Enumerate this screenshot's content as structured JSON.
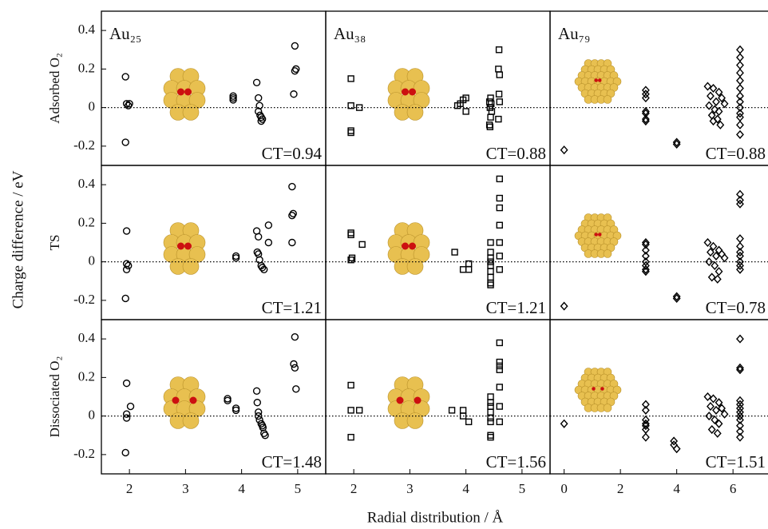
{
  "ylabel": "Charge difference / eV",
  "xlabel": "Radial distribution / Å",
  "chart_data": [
    {
      "type": "scatter",
      "title": "Au₂₅",
      "ylabel": "Adsorbed O₂",
      "annotation": "CT=0.94",
      "marker": "circle",
      "color": "#000000",
      "x": [
        1.93,
        1.95,
        1.98,
        2.0,
        1.93,
        3.85,
        3.85,
        3.85,
        4.27,
        4.3,
        4.32,
        4.3,
        4.33,
        4.35,
        4.37,
        4.35,
        4.95,
        4.97,
        4.95,
        4.93
      ],
      "values": [
        0.16,
        0.02,
        0.01,
        0.02,
        -0.18,
        0.06,
        0.05,
        0.04,
        0.13,
        0.05,
        0.01,
        -0.02,
        -0.04,
        -0.05,
        -0.06,
        -0.07,
        0.32,
        0.2,
        0.19,
        0.07
      ],
      "xlim": [
        1.5,
        5.5
      ],
      "ylim": [
        -0.3,
        0.5
      ],
      "yticks": [
        -0.2,
        0,
        0.2,
        0.4
      ],
      "hline": 0
    },
    {
      "type": "scatter",
      "title": "Au₃₈",
      "annotation": "CT=0.88",
      "marker": "square",
      "color": "#000000",
      "x": [
        1.95,
        1.95,
        2.1,
        1.95,
        1.95,
        3.85,
        3.95,
        4.0,
        4.0,
        3.9,
        4.44,
        4.42,
        4.45,
        4.43,
        4.46,
        4.44,
        4.42,
        4.43,
        4.59,
        4.58,
        4.6,
        4.59,
        4.6,
        4.58
      ],
      "values": [
        0.15,
        0.01,
        0.0,
        -0.12,
        -0.13,
        0.01,
        0.04,
        0.05,
        -0.02,
        0.02,
        0.05,
        0.03,
        0.02,
        0.0,
        -0.02,
        -0.05,
        -0.09,
        -0.1,
        0.3,
        0.2,
        0.17,
        0.07,
        0.03,
        -0.06
      ],
      "xlim": [
        1.5,
        5.5
      ],
      "ylim": [
        -0.3,
        0.5
      ],
      "hline": 0
    },
    {
      "type": "scatter",
      "title": "Au₇₉",
      "annotation": "CT=0.88",
      "marker": "diamond",
      "color": "#000000",
      "x": [
        0,
        2.9,
        2.9,
        2.9,
        2.9,
        2.9,
        2.9,
        2.9,
        4.0,
        4.0,
        5.1,
        5.3,
        5.5,
        5.2,
        5.6,
        5.4,
        5.7,
        5.15,
        5.35,
        5.5,
        5.25,
        5.45,
        5.3,
        5.55,
        6.25,
        6.25,
        6.25,
        6.25,
        6.25,
        6.25,
        6.25,
        6.25,
        6.25,
        6.25,
        6.25,
        6.25,
        6.25
      ],
      "values": [
        -0.22,
        0.09,
        0.07,
        0.05,
        -0.02,
        -0.03,
        -0.06,
        -0.07,
        -0.18,
        -0.19,
        0.11,
        0.1,
        0.08,
        0.06,
        0.05,
        0.03,
        0.02,
        0.01,
        -0.01,
        -0.02,
        -0.04,
        -0.06,
        -0.07,
        -0.09,
        0.3,
        0.26,
        0.22,
        0.18,
        0.14,
        0.1,
        0.06,
        0.03,
        0,
        -0.03,
        -0.05,
        -0.09,
        -0.14
      ],
      "xlim": [
        -0.5,
        7.3
      ],
      "ylim": [
        -0.3,
        0.5
      ],
      "hline": 0
    },
    {
      "type": "scatter",
      "ylabel": "TS",
      "annotation": "CT=1.21",
      "marker": "circle",
      "color": "#000000",
      "x": [
        1.95,
        1.95,
        1.98,
        1.95,
        1.93,
        3.9,
        3.9,
        4.27,
        4.3,
        4.28,
        4.3,
        4.32,
        4.35,
        4.37,
        4.4,
        4.48,
        4.48,
        4.9,
        4.92,
        4.9,
        4.9
      ],
      "values": [
        0.16,
        -0.01,
        -0.02,
        -0.04,
        -0.19,
        0.03,
        0.02,
        0.16,
        0.13,
        0.05,
        0.04,
        0.01,
        -0.02,
        -0.03,
        -0.04,
        0.19,
        0.1,
        0.39,
        0.25,
        0.24,
        0.1
      ],
      "xlim": [
        1.5,
        5.5
      ],
      "ylim": [
        -0.3,
        0.5
      ],
      "yticks": [
        -0.2,
        0,
        0.2,
        0.4
      ],
      "hline": 0
    },
    {
      "type": "scatter",
      "annotation": "CT=1.21",
      "marker": "square",
      "color": "#000000",
      "x": [
        1.95,
        1.95,
        1.95,
        1.97,
        2.15,
        3.8,
        3.95,
        4.05,
        4.05,
        4.44,
        4.44,
        4.44,
        4.44,
        4.44,
        4.44,
        4.44,
        4.44,
        4.44,
        4.6,
        4.6,
        4.6,
        4.6,
        4.6,
        4.6,
        4.6
      ],
      "values": [
        0.15,
        0.14,
        0.01,
        0.02,
        0.09,
        0.05,
        -0.04,
        -0.01,
        -0.04,
        0.1,
        0.05,
        0.02,
        0,
        -0.02,
        -0.05,
        -0.08,
        -0.11,
        -0.12,
        0.43,
        0.33,
        0.28,
        0.19,
        0.1,
        0.03,
        -0.04
      ],
      "xlim": [
        1.5,
        5.5
      ],
      "ylim": [
        -0.3,
        0.5
      ],
      "hline": 0
    },
    {
      "type": "scatter",
      "annotation": "CT=0.78",
      "marker": "diamond",
      "color": "#000000",
      "x": [
        0,
        2.9,
        2.9,
        2.9,
        2.9,
        2.9,
        2.9,
        2.9,
        2.9,
        4.0,
        4.0,
        5.1,
        5.3,
        5.5,
        5.2,
        5.6,
        5.4,
        5.7,
        5.15,
        5.35,
        5.5,
        5.25,
        5.45,
        6.25,
        6.25,
        6.25,
        6.25,
        6.25,
        6.25,
        6.25,
        6.25,
        6.25,
        6.25
      ],
      "values": [
        -0.23,
        0.1,
        0.09,
        0.06,
        0.03,
        0,
        -0.02,
        -0.04,
        -0.05,
        -0.18,
        -0.19,
        0.1,
        0.08,
        0.06,
        0.05,
        0.04,
        0.03,
        0.02,
        0,
        -0.02,
        -0.05,
        -0.08,
        -0.09,
        0.35,
        0.32,
        0.3,
        0.12,
        0.08,
        0.05,
        0.03,
        0,
        -0.02,
        -0.04
      ],
      "xlim": [
        -0.5,
        7.3
      ],
      "ylim": [
        -0.3,
        0.5
      ],
      "hline": 0
    },
    {
      "type": "scatter",
      "ylabel": "Dissociated O₂",
      "annotation": "CT=1.48",
      "marker": "circle",
      "color": "#000000",
      "x": [
        1.95,
        1.95,
        2.02,
        1.95,
        1.93,
        3.75,
        3.75,
        3.9,
        3.9,
        4.27,
        4.28,
        4.3,
        4.3,
        4.32,
        4.35,
        4.37,
        4.38,
        4.4,
        4.42,
        4.95,
        4.93,
        4.95,
        4.97
      ],
      "values": [
        0.17,
        0.01,
        0.05,
        -0.01,
        -0.19,
        0.09,
        0.08,
        0.04,
        0.03,
        0.13,
        0.07,
        0.02,
        0,
        -0.02,
        -0.04,
        -0.05,
        -0.06,
        -0.09,
        -0.1,
        0.41,
        0.27,
        0.25,
        0.14
      ],
      "xlim": [
        1.5,
        5.5
      ],
      "ylim": [
        -0.3,
        0.5
      ],
      "xticks": [
        2,
        3,
        4,
        5
      ],
      "yticks": [
        -0.2,
        0,
        0.2,
        0.4
      ],
      "hline": 0
    },
    {
      "type": "scatter",
      "annotation": "CT=1.56",
      "marker": "square",
      "color": "#000000",
      "x": [
        1.95,
        1.95,
        1.95,
        2.1,
        3.75,
        3.95,
        3.95,
        4.05,
        4.44,
        4.44,
        4.44,
        4.44,
        4.44,
        4.44,
        4.44,
        4.44,
        4.6,
        4.6,
        4.6,
        4.6,
        4.6,
        4.6,
        4.6
      ],
      "values": [
        0.16,
        0.03,
        -0.11,
        0.03,
        0.03,
        0.03,
        0,
        -0.03,
        0.1,
        0.07,
        0.05,
        0.02,
        -0.01,
        -0.03,
        -0.1,
        -0.11,
        0.38,
        0.28,
        0.26,
        0.24,
        0.15,
        0.05,
        -0.03
      ],
      "xlim": [
        1.5,
        5.5
      ],
      "ylim": [
        -0.3,
        0.5
      ],
      "xticks": [
        2,
        3,
        4,
        5
      ],
      "hline": 0
    },
    {
      "type": "scatter",
      "annotation": "CT=1.51",
      "marker": "diamond",
      "color": "#000000",
      "x": [
        0,
        2.9,
        2.9,
        2.9,
        2.9,
        2.9,
        2.9,
        2.9,
        3.9,
        3.9,
        4.0,
        5.1,
        5.3,
        5.5,
        5.2,
        5.6,
        5.4,
        5.7,
        5.15,
        5.35,
        5.5,
        5.25,
        5.45,
        6.25,
        6.25,
        6.25,
        6.25,
        6.25,
        6.25,
        6.25,
        6.25,
        6.25,
        6.25,
        6.25,
        6.25
      ],
      "values": [
        -0.04,
        0.06,
        0.03,
        -0.02,
        -0.04,
        -0.05,
        -0.07,
        -0.11,
        -0.13,
        -0.15,
        -0.17,
        0.1,
        0.09,
        0.07,
        0.05,
        0.04,
        0.03,
        0.01,
        0,
        -0.02,
        -0.04,
        -0.07,
        -0.09,
        0.4,
        0.25,
        0.24,
        0.08,
        0.06,
        0.04,
        0.02,
        0,
        -0.02,
        -0.05,
        -0.08,
        -0.11
      ],
      "xlim": [
        -0.5,
        7.3
      ],
      "ylim": [
        -0.3,
        0.5
      ],
      "xticks": [
        0,
        2,
        4,
        6
      ],
      "hline": 0
    }
  ]
}
